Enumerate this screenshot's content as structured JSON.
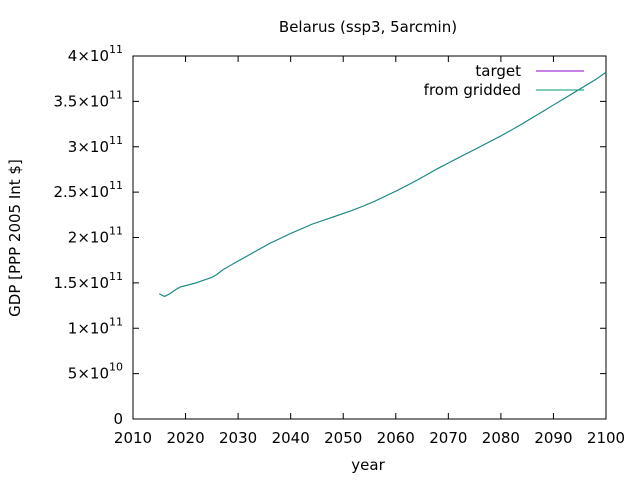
{
  "chart_data": {
    "type": "line",
    "title": "Belarus (ssp3, 5arcmin)",
    "xlabel": "year",
    "ylabel": "GDP [PPP 2005 Int $]",
    "xlim": [
      2010,
      2100
    ],
    "ylim": [
      0,
      400000000000
    ],
    "x_ticks": [
      "2010",
      "2020",
      "2030",
      "2040",
      "2050",
      "2060",
      "2070",
      "2080",
      "2090",
      "2100"
    ],
    "x_tick_values": [
      2010,
      2020,
      2030,
      2040,
      2050,
      2060,
      2070,
      2080,
      2090,
      2100
    ],
    "y_ticks": [
      {
        "value": 0,
        "mantissa": "0",
        "exponent": ""
      },
      {
        "value": 50000000000,
        "mantissa": "5×10",
        "exponent": "10"
      },
      {
        "value": 100000000000,
        "mantissa": "1×10",
        "exponent": "11"
      },
      {
        "value": 150000000000,
        "mantissa": "1.5×10",
        "exponent": "11"
      },
      {
        "value": 200000000000,
        "mantissa": "2×10",
        "exponent": "11"
      },
      {
        "value": 250000000000,
        "mantissa": "2.5×10",
        "exponent": "11"
      },
      {
        "value": 300000000000,
        "mantissa": "3×10",
        "exponent": "11"
      },
      {
        "value": 350000000000,
        "mantissa": "3.5×10",
        "exponent": "11"
      },
      {
        "value": 400000000000,
        "mantissa": "4×10",
        "exponent": "11"
      }
    ],
    "grid": false,
    "legend_position": "top-right",
    "series": [
      {
        "name": "target",
        "color": "#9400d3",
        "x": [
          2015,
          2016,
          2017,
          2018,
          2019,
          2020,
          2022,
          2024,
          2025,
          2026,
          2027,
          2028,
          2030,
          2032,
          2034,
          2036,
          2038,
          2040,
          2042,
          2044,
          2046,
          2048,
          2050,
          2052,
          2054,
          2056,
          2058,
          2060,
          2062,
          2064,
          2066,
          2068,
          2070,
          2072,
          2074,
          2076,
          2078,
          2080,
          2082,
          2084,
          2086,
          2088,
          2090,
          2092,
          2094,
          2096,
          2098,
          2100
        ],
        "y": [
          138000000000,
          135000000000,
          138000000000,
          142000000000,
          145500000000,
          147000000000,
          150000000000,
          154000000000,
          156000000000,
          159500000000,
          164000000000,
          167500000000,
          174000000000,
          180500000000,
          187000000000,
          193500000000,
          199000000000,
          204500000000,
          209500000000,
          214500000000,
          218500000000,
          222500000000,
          226500000000,
          230500000000,
          235000000000,
          240000000000,
          245500000000,
          251000000000,
          257000000000,
          263000000000,
          269500000000,
          276000000000,
          282000000000,
          288000000000,
          294000000000,
          300000000000,
          306000000000,
          312000000000,
          318500000000,
          325000000000,
          332000000000,
          339000000000,
          346000000000,
          353000000000,
          360000000000,
          367000000000,
          374000000000,
          382000000000
        ]
      },
      {
        "name": "from gridded",
        "color": "#009e73",
        "x": [
          2015,
          2016,
          2017,
          2018,
          2019,
          2020,
          2022,
          2024,
          2025,
          2026,
          2027,
          2028,
          2030,
          2032,
          2034,
          2036,
          2038,
          2040,
          2042,
          2044,
          2046,
          2048,
          2050,
          2052,
          2054,
          2056,
          2058,
          2060,
          2062,
          2064,
          2066,
          2068,
          2070,
          2072,
          2074,
          2076,
          2078,
          2080,
          2082,
          2084,
          2086,
          2088,
          2090,
          2092,
          2094,
          2096,
          2098,
          2100
        ],
        "y": [
          138000000000,
          135000000000,
          138000000000,
          142000000000,
          145500000000,
          147000000000,
          150000000000,
          154000000000,
          156000000000,
          159500000000,
          164000000000,
          167500000000,
          174000000000,
          180500000000,
          187000000000,
          193500000000,
          199000000000,
          204500000000,
          209500000000,
          214500000000,
          218500000000,
          222500000000,
          226500000000,
          230500000000,
          235000000000,
          240000000000,
          245500000000,
          251000000000,
          257000000000,
          263000000000,
          269500000000,
          276000000000,
          282000000000,
          288000000000,
          294000000000,
          300000000000,
          306000000000,
          312000000000,
          318500000000,
          325000000000,
          332000000000,
          339000000000,
          346000000000,
          353000000000,
          360000000000,
          367000000000,
          374000000000,
          382000000000
        ]
      }
    ]
  }
}
